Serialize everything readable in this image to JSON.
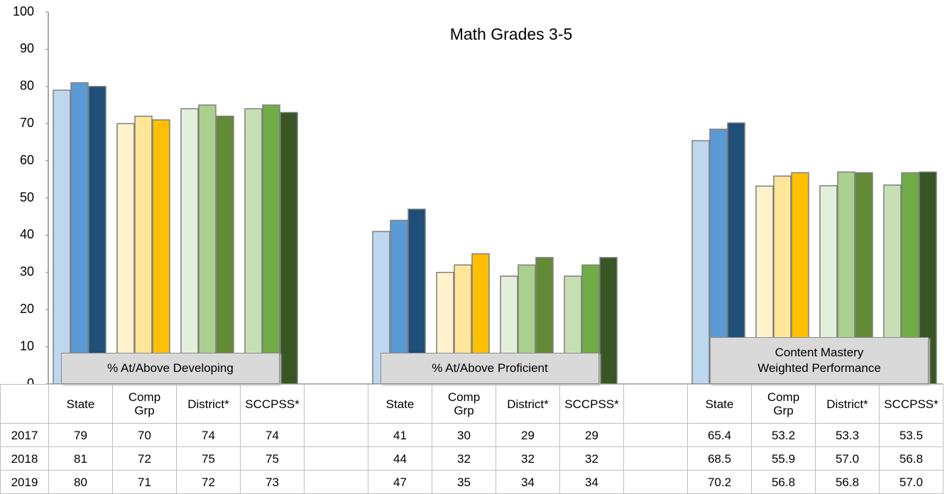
{
  "chart_data": {
    "type": "bar",
    "title": "Math Grades 3-5",
    "ylim": [
      0,
      100
    ],
    "yticks": [
      0,
      10,
      20,
      30,
      40,
      50,
      60,
      70,
      80,
      90,
      100
    ],
    "groups": [
      "% At/Above Developing",
      "% At/Above Proficient",
      "Content Mastery\nWeighted Performance"
    ],
    "categories": [
      "State",
      "Comp\nGrp",
      "District*",
      "SCCPSS*",
      "State",
      "Comp\nGrp",
      "District*",
      "SCCPSS*",
      "State",
      "Comp\nGrp",
      "District*",
      "SCCPSS*"
    ],
    "series": [
      {
        "name": "2017",
        "values": [
          79,
          70,
          74,
          74,
          41,
          30,
          29,
          29,
          65.4,
          53.2,
          53.3,
          53.5
        ],
        "colors": [
          "#bdd7ee",
          "#fff2cc",
          "#e2efda",
          "#c6e0b4",
          "#bdd7ee",
          "#fff2cc",
          "#e2efda",
          "#c6e0b4",
          "#bdd7ee",
          "#fff2cc",
          "#e2efda",
          "#c6e0b4"
        ]
      },
      {
        "name": "2018",
        "values": [
          81,
          72,
          75,
          75,
          44,
          32,
          32,
          32,
          68.5,
          55.9,
          57,
          56.8
        ],
        "value_labels": [
          "81",
          "72",
          "75",
          "75",
          "44",
          "32",
          "32",
          "32",
          "68.5",
          "55.9",
          "57.0",
          "56.8"
        ],
        "colors": [
          "#5b9bd5",
          "#ffe699",
          "#a9d08e",
          "#70ad47",
          "#5b9bd5",
          "#ffe699",
          "#a9d08e",
          "#70ad47",
          "#5b9bd5",
          "#ffe699",
          "#a9d08e",
          "#70ad47"
        ]
      },
      {
        "name": "2019",
        "values": [
          80,
          71,
          72,
          73,
          47,
          35,
          34,
          34,
          70.2,
          56.8,
          56.8,
          57
        ],
        "value_labels": [
          "80",
          "71",
          "72",
          "73",
          "47",
          "35",
          "34",
          "34",
          "70.2",
          "56.8",
          "56.8",
          "57.0"
        ],
        "colors": [
          "#1f4e79",
          "#ffc000",
          "#638a35",
          "#375623",
          "#1f4e79",
          "#ffc000",
          "#638a35",
          "#375623",
          "#1f4e79",
          "#ffc000",
          "#638a35",
          "#375623"
        ]
      }
    ]
  }
}
